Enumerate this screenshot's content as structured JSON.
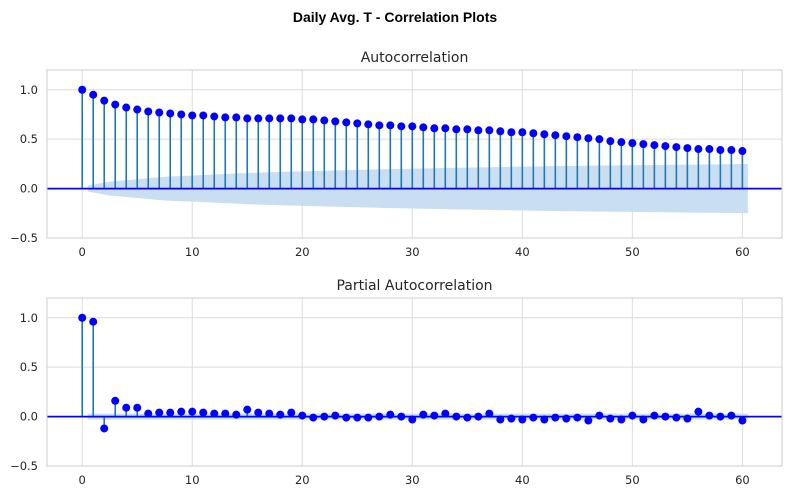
{
  "figure": {
    "title": "Daily Avg. T - Correlation Plots"
  },
  "chart_data": [
    {
      "type": "stem",
      "title": "Autocorrelation",
      "xlim": [
        -3.2,
        63.6
      ],
      "ylim": [
        -0.5,
        1.2
      ],
      "xticks": [
        0,
        10,
        20,
        30,
        40,
        50,
        60
      ],
      "yticks": [
        -0.5,
        0.0,
        0.5,
        1.0
      ],
      "ytick_labels": [
        "−0.5",
        "0.0",
        "0.5",
        "1.0"
      ],
      "grid": true,
      "marker_color": "#0000ff",
      "stem_color": "#1f77b4",
      "zero_line_color": "#0000ff",
      "confint_color": "#c6dcef",
      "lags": [
        0,
        1,
        2,
        3,
        4,
        5,
        6,
        7,
        8,
        9,
        10,
        11,
        12,
        13,
        14,
        15,
        16,
        17,
        18,
        19,
        20,
        21,
        22,
        23,
        24,
        25,
        26,
        27,
        28,
        29,
        30,
        31,
        32,
        33,
        34,
        35,
        36,
        37,
        38,
        39,
        40,
        41,
        42,
        43,
        44,
        45,
        46,
        47,
        48,
        49,
        50,
        51,
        52,
        53,
        54,
        55,
        56,
        57,
        58,
        59,
        60
      ],
      "values": [
        1.0,
        0.95,
        0.89,
        0.85,
        0.82,
        0.8,
        0.78,
        0.77,
        0.76,
        0.75,
        0.74,
        0.74,
        0.73,
        0.72,
        0.72,
        0.71,
        0.71,
        0.71,
        0.71,
        0.71,
        0.7,
        0.7,
        0.69,
        0.68,
        0.67,
        0.66,
        0.65,
        0.64,
        0.64,
        0.63,
        0.63,
        0.62,
        0.61,
        0.61,
        0.6,
        0.6,
        0.59,
        0.59,
        0.58,
        0.57,
        0.57,
        0.56,
        0.55,
        0.54,
        0.53,
        0.52,
        0.51,
        0.5,
        0.48,
        0.47,
        0.46,
        0.45,
        0.44,
        0.43,
        0.42,
        0.41,
        0.4,
        0.4,
        0.39,
        0.39,
        0.38
      ],
      "confint_start_lag": 0.5,
      "confint_end_lag": 60.5,
      "confint_upper": [
        0.03,
        0.05,
        0.07,
        0.08,
        0.09,
        0.1,
        0.11,
        0.12,
        0.125,
        0.13,
        0.135,
        0.14,
        0.145,
        0.15,
        0.155,
        0.16,
        0.163,
        0.166,
        0.17,
        0.173,
        0.176,
        0.179,
        0.182,
        0.185,
        0.188,
        0.19,
        0.193,
        0.196,
        0.198,
        0.2,
        0.203,
        0.205,
        0.207,
        0.209,
        0.211,
        0.213,
        0.215,
        0.217,
        0.219,
        0.221,
        0.223,
        0.224,
        0.226,
        0.228,
        0.229,
        0.231,
        0.232,
        0.233,
        0.235,
        0.236,
        0.237,
        0.238,
        0.239,
        0.241,
        0.242,
        0.243,
        0.244,
        0.245,
        0.246,
        0.247,
        0.248
      ]
    },
    {
      "type": "stem",
      "title": "Partial Autocorrelation",
      "xlim": [
        -3.2,
        63.6
      ],
      "ylim": [
        -0.5,
        1.2
      ],
      "xticks": [
        0,
        10,
        20,
        30,
        40,
        50,
        60
      ],
      "yticks": [
        -0.5,
        0.0,
        0.5,
        1.0
      ],
      "ytick_labels": [
        "−0.5",
        "0.0",
        "0.5",
        "1.0"
      ],
      "grid": true,
      "marker_color": "#0000ff",
      "stem_color": "#1f77b4",
      "zero_line_color": "#0000ff",
      "confint_color": "#c6dcef",
      "lags": [
        0,
        1,
        2,
        3,
        4,
        5,
        6,
        7,
        8,
        9,
        10,
        11,
        12,
        13,
        14,
        15,
        16,
        17,
        18,
        19,
        20,
        21,
        22,
        23,
        24,
        25,
        26,
        27,
        28,
        29,
        30,
        31,
        32,
        33,
        34,
        35,
        36,
        37,
        38,
        39,
        40,
        41,
        42,
        43,
        44,
        45,
        46,
        47,
        48,
        49,
        50,
        51,
        52,
        53,
        54,
        55,
        56,
        57,
        58,
        59,
        60
      ],
      "values": [
        1.0,
        0.96,
        -0.12,
        0.16,
        0.09,
        0.09,
        0.03,
        0.04,
        0.04,
        0.05,
        0.05,
        0.04,
        0.03,
        0.03,
        0.02,
        0.07,
        0.04,
        0.03,
        0.02,
        0.04,
        0.01,
        -0.01,
        0.0,
        0.01,
        -0.01,
        -0.01,
        -0.01,
        0.0,
        0.02,
        0.0,
        -0.03,
        0.02,
        0.01,
        0.03,
        0.0,
        -0.01,
        0.0,
        0.03,
        -0.03,
        -0.02,
        -0.03,
        -0.01,
        -0.03,
        -0.01,
        -0.02,
        -0.01,
        -0.04,
        0.01,
        -0.02,
        -0.03,
        0.01,
        -0.03,
        0.01,
        0.0,
        -0.01,
        -0.02,
        0.05,
        0.01,
        0.0,
        0.01,
        -0.04
      ],
      "confint_start_lag": 0.5,
      "confint_end_lag": 60.5,
      "confint_half_width": 0.03
    }
  ]
}
